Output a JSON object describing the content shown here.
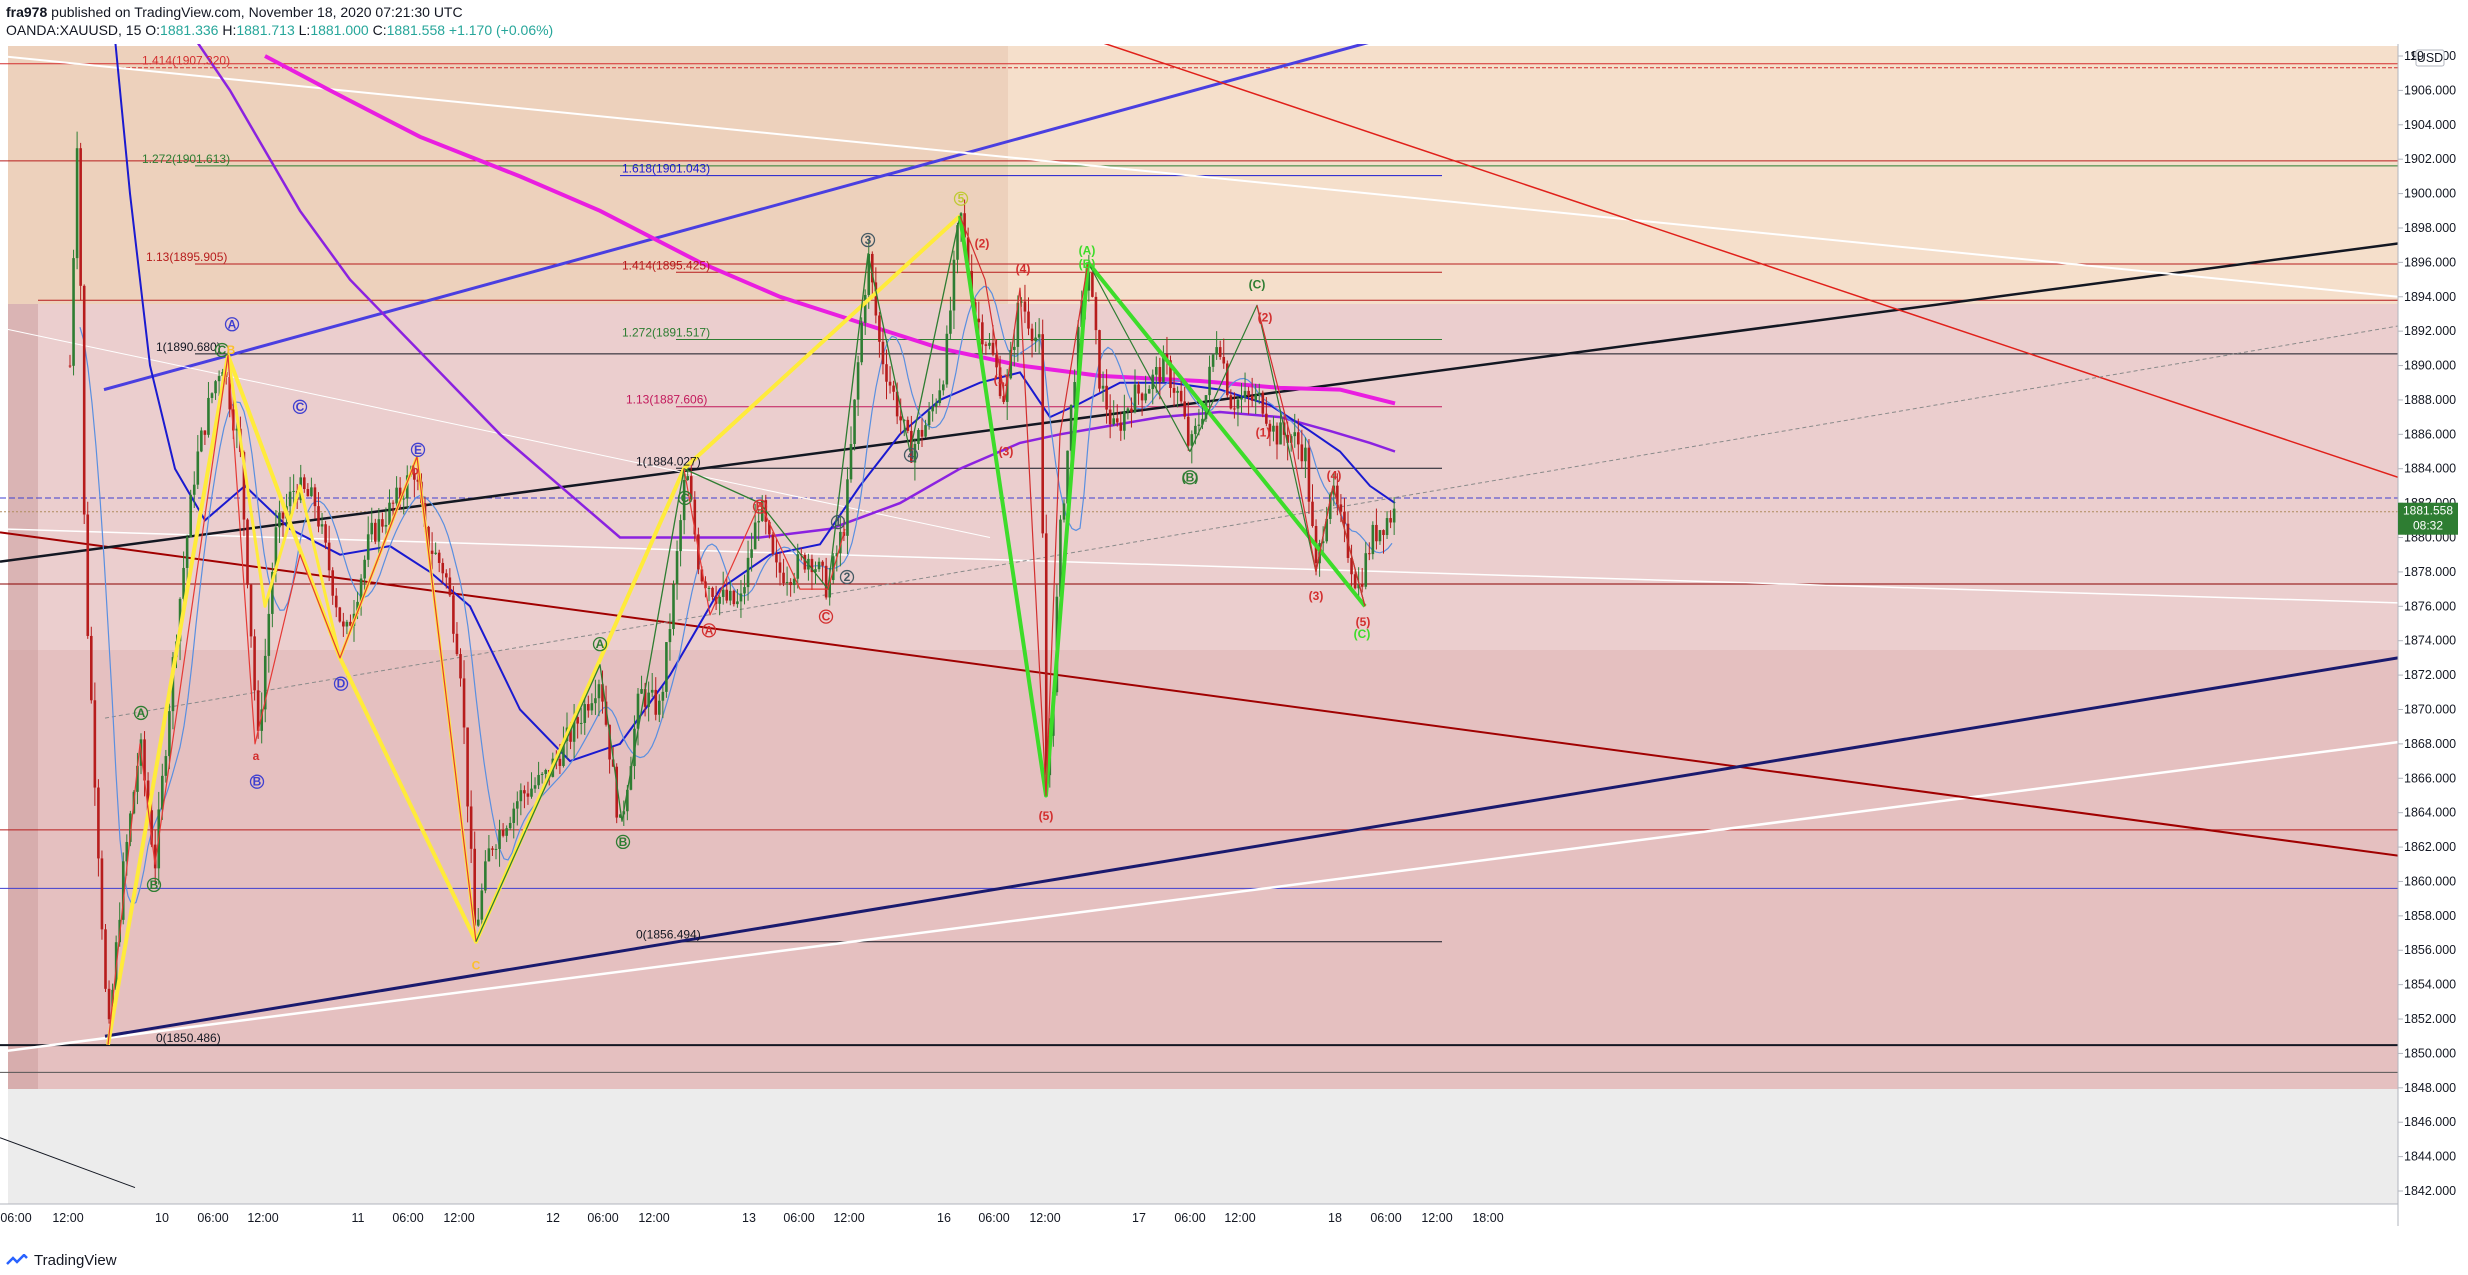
{
  "header": {
    "author": "fra978",
    "published": "published on TradingView.com, November 18, 2020 07:21:30 UTC",
    "symbol": "OANDA:XAUUSD, 15",
    "change": "+1.170 (+0.06%)",
    "o_label": "O:",
    "o_value": "1881.336",
    "h_label": "H:",
    "h_value": "1881.713",
    "l_label": "L:",
    "l_value": "1881.000",
    "c_label": "C:",
    "c_value": "1881.558"
  },
  "footer": {
    "brand": "TradingView"
  },
  "price_axis": {
    "currency": "USD",
    "last_price": "1881.558",
    "countdown": "08:32",
    "top_label": "19",
    "colors": {
      "last_price_bg": "#2e7d32"
    }
  },
  "colors": {
    "up": "#2e7d32",
    "down": "#b71c1c",
    "zone_orange": "#f3d9c2",
    "zone_pink": "#e9c9c9",
    "zone_dark": "#d6a8a8",
    "yellow": "#ffeb3b",
    "magenta": "#e91ee0",
    "violet": "#8b22e0",
    "blue": "#1a1ad0",
    "green_bright": "#3ddc2a",
    "channel_blue": "#4a3fe0"
  },
  "chart_data": {
    "type": "candlestick",
    "symbol": "OANDA:XAUUSD",
    "interval": "15",
    "ylim": [
      1841.5,
      1909.5
    ],
    "y_ticks": [
      1842,
      1844,
      1846,
      1848,
      1850,
      1852,
      1854,
      1856,
      1858,
      1860,
      1862,
      1864,
      1866,
      1868,
      1870,
      1872,
      1874,
      1876,
      1878,
      1880,
      1882,
      1884,
      1886,
      1888,
      1890,
      1892,
      1894,
      1896,
      1898,
      1900,
      1902,
      1904,
      1906,
      1908
    ],
    "x_tick_labels": [
      "06:00",
      "12:00",
      "10",
      "06:00",
      "12:00",
      "11",
      "06:00",
      "12:00",
      "12",
      "06:00",
      "12:00",
      "13",
      "06:00",
      "12:00",
      "16",
      "06:00",
      "12:00",
      "17",
      "06:00",
      "12:00",
      "18",
      "06:00",
      "12:00",
      "18:00"
    ],
    "fib_levels": [
      {
        "label": "1.414(1907.320)",
        "price": 1907.32,
        "color": "#d32f2f"
      },
      {
        "label": "1.272(1901.613)",
        "price": 1901.613,
        "color": "#2e7d32"
      },
      {
        "label": "1.13(1895.905)",
        "price": 1895.905,
        "color": "#b71c1c"
      },
      {
        "label": "1(1890.680)",
        "price": 1890.68,
        "color": "#131722"
      },
      {
        "label": "0(1850.486)",
        "price": 1850.486,
        "color": "#131722"
      },
      {
        "label": "1.618(1901.043)",
        "price": 1901.043,
        "color": "#1a1ad0"
      },
      {
        "label": "1.414(1895.425)",
        "price": 1895.425,
        "color": "#b71c1c"
      },
      {
        "label": "1.272(1891.517)",
        "price": 1891.517,
        "color": "#2e7d32"
      },
      {
        "label": "1.13(1887.606)",
        "price": 1887.606,
        "color": "#c2185b"
      },
      {
        "label": "1(1884.027)",
        "price": 1884.027,
        "color": "#131722"
      },
      {
        "label": "0(1856.494)",
        "price": 1856.494,
        "color": "#131722"
      }
    ],
    "wave_labels": [
      {
        "text": "A",
        "color": "#2e7d32"
      },
      {
        "text": "B",
        "color": "#2e7d32"
      },
      {
        "text": "C",
        "color": "#2e7d32"
      },
      {
        "text": "B",
        "color": "#fbc02d"
      },
      {
        "text": "A",
        "color": "#3f3fd0"
      },
      {
        "text": "a",
        "color": "#d32f2f"
      },
      {
        "text": "B",
        "color": "#3f3fd0"
      },
      {
        "text": "C",
        "color": "#3f3fd0"
      },
      {
        "text": "D",
        "color": "#3f3fd0"
      },
      {
        "text": "E",
        "color": "#3f3fd0"
      },
      {
        "text": "b",
        "color": "#d32f2f"
      },
      {
        "text": "C",
        "color": "#fbc02d"
      },
      {
        "text": "A",
        "color": "#2e7d32"
      },
      {
        "text": "B",
        "color": "#2e7d32"
      },
      {
        "text": "C",
        "color": "#2e7d32"
      },
      {
        "text": "A",
        "color": "#d32f2f"
      },
      {
        "text": "B",
        "color": "#d32f2f"
      },
      {
        "text": "C",
        "color": "#d32f2f"
      },
      {
        "text": "1",
        "color": "#455a64"
      },
      {
        "text": "2",
        "color": "#455a64"
      },
      {
        "text": "3",
        "color": "#455a64"
      },
      {
        "text": "4",
        "color": "#455a64"
      },
      {
        "text": "5",
        "color": "#c0ca33"
      },
      {
        "text": "(1)",
        "color": "#d32f2f"
      },
      {
        "text": "(2)",
        "color": "#d32f2f"
      },
      {
        "text": "(3)",
        "color": "#d32f2f"
      },
      {
        "text": "(4)",
        "color": "#d32f2f"
      },
      {
        "text": "(5)",
        "color": "#d32f2f"
      },
      {
        "text": "(A)",
        "color": "#3ddc2a"
      },
      {
        "text": "(B)",
        "color": "#3ddc2a"
      },
      {
        "text": "(C)",
        "color": "#3ddc2a"
      },
      {
        "text": "(B)",
        "color": "#2e7d32"
      },
      {
        "text": "(C)",
        "color": "#2e7d32"
      },
      {
        "text": "(1)",
        "color": "#d32f2f"
      },
      {
        "text": "(2)",
        "color": "#d32f2f"
      },
      {
        "text": "(3)",
        "color": "#d32f2f"
      },
      {
        "text": "(4)",
        "color": "#d32f2f"
      },
      {
        "text": "(5)",
        "color": "#d32f2f"
      }
    ]
  }
}
